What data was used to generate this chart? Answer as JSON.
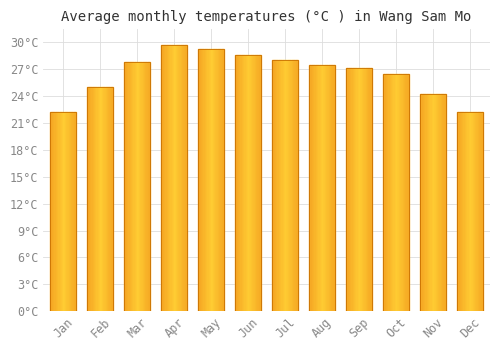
{
  "title": "Average monthly temperatures (°C ) in Wang Sam Mo",
  "months": [
    "Jan",
    "Feb",
    "Mar",
    "Apr",
    "May",
    "Jun",
    "Jul",
    "Aug",
    "Sep",
    "Oct",
    "Nov",
    "Dec"
  ],
  "values": [
    22.2,
    25.0,
    27.8,
    29.7,
    29.3,
    28.6,
    28.0,
    27.5,
    27.2,
    26.5,
    24.3,
    22.2
  ],
  "bar_color_light": "#FFCC33",
  "bar_color_dark": "#F5A623",
  "bar_edge_color": "#C87000",
  "background_color": "#FFFFFF",
  "grid_color": "#DDDDDD",
  "yticks": [
    0,
    3,
    6,
    9,
    12,
    15,
    18,
    21,
    24,
    27,
    30
  ],
  "ylim": [
    0,
    31.5
  ],
  "title_fontsize": 10,
  "tick_fontsize": 8.5,
  "tick_color": "#888888",
  "title_color": "#333333",
  "font_family": "monospace"
}
